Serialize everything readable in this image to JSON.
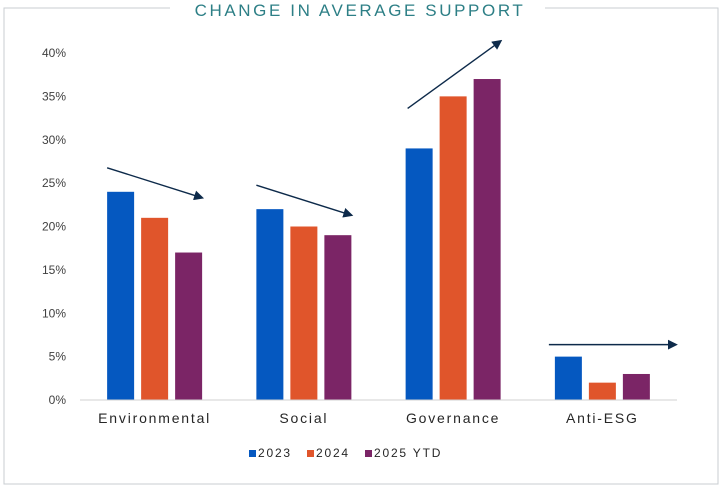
{
  "chart_data": {
    "type": "bar",
    "title": "CHANGE IN AVERAGE SUPPORT",
    "categories": [
      "Environmental",
      "Social",
      "Governance",
      "Anti-ESG"
    ],
    "series": [
      {
        "name": "2023",
        "values": [
          24,
          22,
          29,
          5
        ],
        "color": "#0558c0"
      },
      {
        "name": "2024",
        "values": [
          21,
          20,
          35,
          2
        ],
        "color": "#e0552b"
      },
      {
        "name": "2025 YTD",
        "values": [
          17,
          19,
          37,
          3
        ],
        "color": "#7b2566"
      }
    ],
    "y_ticks": [
      "0%",
      "5%",
      "10%",
      "15%",
      "20%",
      "25%",
      "30%",
      "35%",
      "40%"
    ],
    "ylim": [
      0,
      40
    ],
    "y_unit": "%",
    "grid": false,
    "legend_position": "bottom",
    "trend_arrows": [
      {
        "category": "Environmental",
        "direction": "down"
      },
      {
        "category": "Social",
        "direction": "down"
      },
      {
        "category": "Governance",
        "direction": "up"
      },
      {
        "category": "Anti-ESG",
        "direction": "flat"
      }
    ],
    "arrow_color": "#0d2a4a",
    "frame_color": "#c8cdd2",
    "title_color": "#2d7f86"
  }
}
